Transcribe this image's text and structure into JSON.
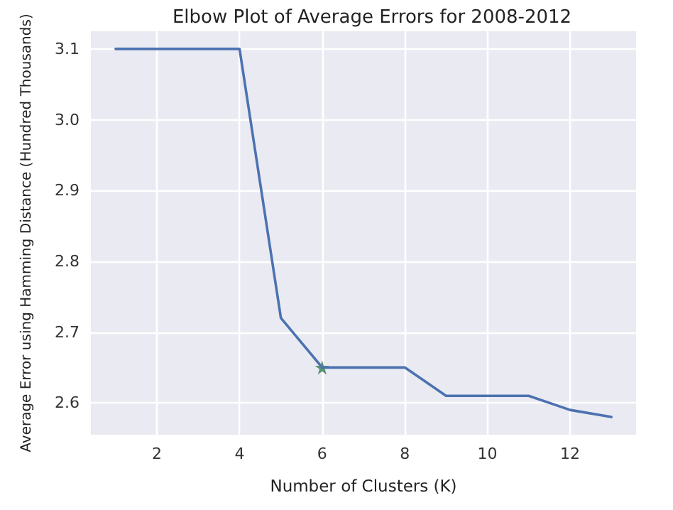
{
  "chart_data": {
    "type": "line",
    "title": "Elbow Plot of Average Errors for 2008-2012",
    "xlabel": "Number of Clusters (K)",
    "ylabel": "Average Error using Hamming Distance (Hundred Thousands)",
    "x": [
      1,
      2,
      3,
      4,
      5,
      6,
      7,
      8,
      9,
      10,
      11,
      12,
      13
    ],
    "series": [
      {
        "color": "#4c72b0",
        "values": [
          3.1,
          3.1,
          3.1,
          3.1,
          2.72,
          2.65,
          2.65,
          2.65,
          2.61,
          2.61,
          2.61,
          2.59,
          2.58
        ],
        "marker": "none"
      },
      {
        "type": "scatter",
        "color": "#2e7d4f",
        "x": [
          6
        ],
        "values": [
          2.65
        ],
        "marker": "star"
      }
    ],
    "xlim": [
      0.4,
      13.6
    ],
    "ylim": [
      2.555,
      3.125
    ],
    "xticks": [
      2,
      4,
      6,
      8,
      10,
      12
    ],
    "yticks": [
      2.6,
      2.7,
      2.8,
      2.9,
      {
        "value": 3,
        "label": "3.0"
      },
      3.1
    ],
    "grid": true,
    "line_style": "solid"
  }
}
